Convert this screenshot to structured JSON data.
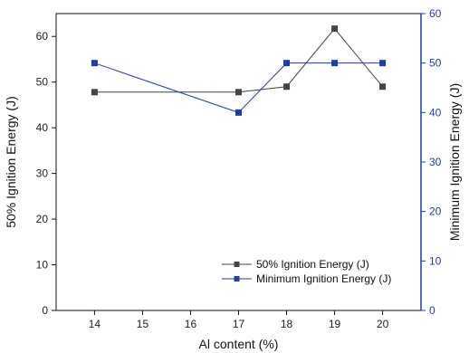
{
  "chart_data": {
    "type": "line",
    "title": "",
    "xlabel": "Al content (%)",
    "ylabel_left": "50% Ignition Energy (J)",
    "ylabel_right": "Minimum Ignition Energy (J)",
    "x": [
      14,
      17,
      18,
      19,
      20
    ],
    "x_ticks": [
      14,
      15,
      16,
      17,
      18,
      19,
      20
    ],
    "xlim": [
      13.2,
      20.8
    ],
    "left_ylim": [
      0,
      65
    ],
    "left_yticks": [
      0,
      10,
      20,
      30,
      40,
      50,
      60
    ],
    "right_ylim": [
      0,
      60
    ],
    "right_yticks": [
      0,
      10,
      20,
      30,
      40,
      50,
      60
    ],
    "grid": false,
    "legend_position": "bottom-right",
    "series": [
      {
        "name": "50% Ignition Energy (J)",
        "axis": "left",
        "values": [
          47.8,
          47.8,
          49.0,
          61.7,
          49.0
        ],
        "color": "#444444",
        "marker": "square"
      },
      {
        "name": "Minimum Ignition Energy (J)",
        "axis": "right",
        "values": [
          50,
          40,
          50,
          50,
          50
        ],
        "color": "#1f3f9f",
        "marker": "square"
      }
    ]
  }
}
